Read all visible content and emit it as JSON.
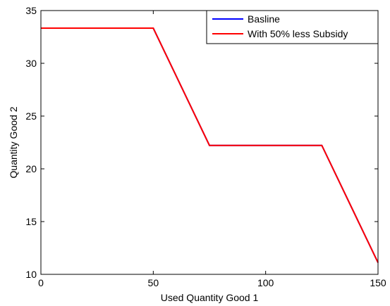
{
  "chart_data": {
    "type": "line",
    "title": "",
    "xlabel": "Used Quantity Good 1",
    "ylabel": "Quantity Good 2",
    "xlim": [
      0,
      150
    ],
    "ylim": [
      10,
      35
    ],
    "xticks": [
      0,
      50,
      100,
      150
    ],
    "yticks": [
      10,
      15,
      20,
      25,
      30,
      35
    ],
    "grid": false,
    "legend_position": "top-right",
    "series": [
      {
        "name": "Basline",
        "color": "#0000ff",
        "x": [
          0,
          50,
          75,
          125,
          150
        ],
        "y": [
          33.33,
          33.33,
          22.22,
          22.22,
          11.11
        ]
      },
      {
        "name": "With 50% less Subsidy",
        "color": "#ff0000",
        "x": [
          0,
          50,
          75,
          125,
          150
        ],
        "y": [
          33.33,
          33.33,
          22.22,
          22.22,
          11.11
        ]
      }
    ]
  }
}
